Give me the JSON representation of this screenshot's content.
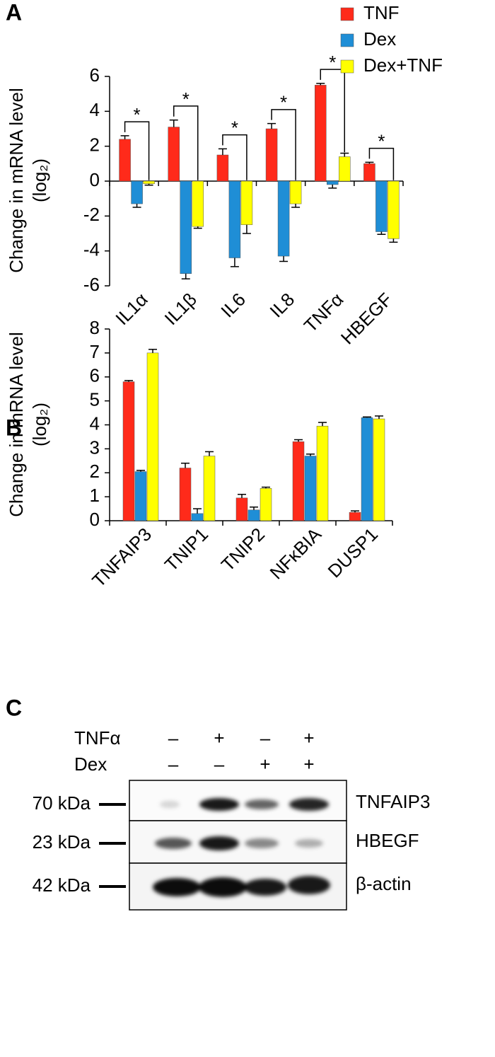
{
  "chart_data": [
    {
      "type": "bar",
      "panel_label": "A",
      "ylabel": "Change in mRNA level",
      "ylabel_unit": "(log₂)",
      "categories": [
        "IL1α",
        "IL1β",
        "IL6",
        "IL8",
        "TNFα",
        "HBEGF"
      ],
      "series": [
        {
          "name": "TNF",
          "color": "#ff2a1a",
          "values": [
            2.4,
            3.1,
            1.5,
            3.0,
            5.5,
            1.0
          ],
          "errors": [
            0.2,
            0.4,
            0.35,
            0.3,
            0.1,
            0.08
          ]
        },
        {
          "name": "Dex",
          "color": "#1f8ed6",
          "values": [
            -1.3,
            -5.3,
            -4.4,
            -4.3,
            -0.2,
            -2.9
          ],
          "errors": [
            0.2,
            0.3,
            0.5,
            0.3,
            0.2,
            0.15
          ]
        },
        {
          "name": "Dex+TNF",
          "color": "#ffff00",
          "values": [
            -0.15,
            -2.6,
            -2.5,
            -1.3,
            1.4,
            -3.3
          ],
          "errors": [
            0.08,
            0.1,
            0.5,
            0.2,
            0.2,
            0.2
          ]
        }
      ],
      "significance_labels": [
        "*",
        "*",
        "*",
        "*",
        "*",
        "*"
      ],
      "ylim": [
        -6,
        6
      ],
      "yticks": [
        -6,
        -4,
        -2,
        0,
        2,
        4,
        6
      ],
      "legend": "upper right"
    },
    {
      "type": "bar",
      "panel_label": "B",
      "ylabel": "Change in mRNA level",
      "ylabel_unit": "(log₂)",
      "categories": [
        "TNFAIP3",
        "TNIP1",
        "TNIP2",
        "NFκBIA",
        "DUSP1"
      ],
      "series": [
        {
          "color": "#ff2a1a",
          "values": [
            5.8,
            2.2,
            0.95,
            3.3,
            0.35
          ],
          "errors": [
            0.05,
            0.2,
            0.15,
            0.08,
            0.06
          ]
        },
        {
          "color": "#1f8ed6",
          "values": [
            2.05,
            0.3,
            0.45,
            2.7,
            4.3
          ],
          "errors": [
            0.05,
            0.2,
            0.12,
            0.08,
            0.03
          ]
        },
        {
          "color": "#ffff00",
          "values": [
            7.0,
            2.7,
            1.35,
            3.95,
            4.25
          ],
          "errors": [
            0.15,
            0.18,
            0.05,
            0.15,
            0.12
          ]
        }
      ],
      "ylim": [
        0,
        8
      ],
      "yticks": [
        0,
        1,
        2,
        3,
        4,
        5,
        6,
        7,
        8
      ]
    }
  ],
  "blot": {
    "panel_label": "C",
    "conditions": [
      {
        "name": "TNFα",
        "signs": [
          "–",
          "+",
          "–",
          "+"
        ]
      },
      {
        "name": "Dex",
        "signs": [
          "–",
          "–",
          "+",
          "+"
        ]
      }
    ],
    "rows": [
      {
        "size": "70 kDa",
        "protein": "TNFAIP3"
      },
      {
        "size": "23 kDa",
        "protein": "HBEGF"
      },
      {
        "size": "42 kDa",
        "protein": "β-actin"
      }
    ]
  }
}
